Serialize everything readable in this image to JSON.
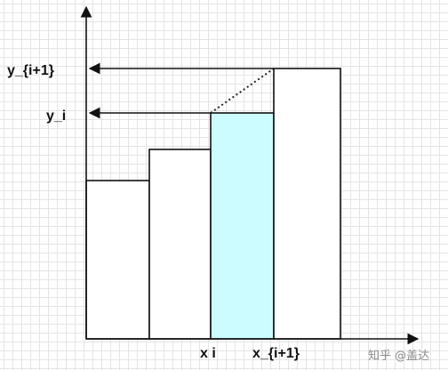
{
  "labels": {
    "y_upper": "y_{i+1}",
    "y_lower": "y_i",
    "x_left": "x i",
    "x_right": "x_{i+1}"
  },
  "watermark": "知乎 @盖达",
  "colors": {
    "highlight_fill": "#ccfcff",
    "bar_stroke": "#111111",
    "axis_stroke": "#111111"
  },
  "bars": [
    {
      "id": "bar-1",
      "relative_height": 0.59,
      "highlighted": false
    },
    {
      "id": "bar-2",
      "relative_height": 0.7,
      "highlighted": false
    },
    {
      "id": "bar-3",
      "relative_height": 0.84,
      "highlighted": true
    },
    {
      "id": "bar-4",
      "relative_height": 1.0,
      "highlighted": false
    }
  ]
}
